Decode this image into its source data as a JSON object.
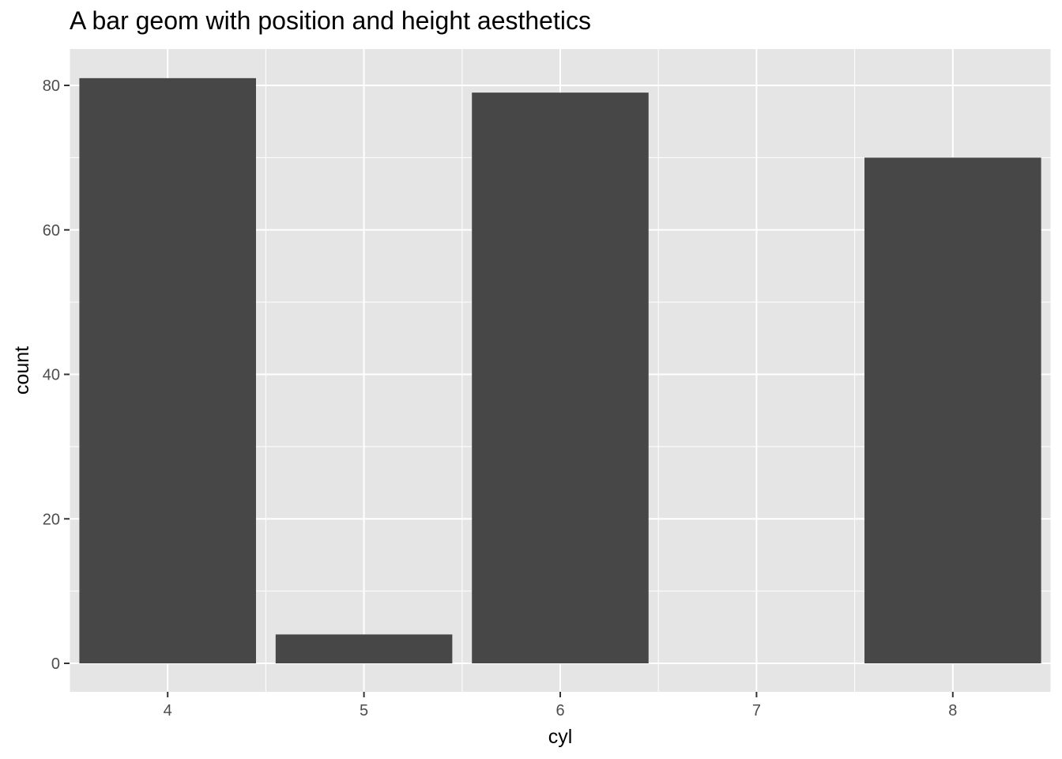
{
  "chart_data": {
    "type": "bar",
    "title": "A bar geom with position and height aesthetics",
    "xlabel": "cyl",
    "ylabel": "count",
    "categories": [
      "4",
      "5",
      "6",
      "7",
      "8"
    ],
    "x": [
      4,
      5,
      6,
      7,
      8
    ],
    "values": [
      81,
      4,
      79,
      0,
      70
    ],
    "xlim": [
      3.5,
      8.5
    ],
    "ylim": [
      0,
      85
    ],
    "xticks": [
      4,
      5,
      6,
      7,
      8
    ],
    "yticks": [
      0,
      20,
      40,
      60,
      80
    ],
    "grid": true,
    "colors": {
      "panel_background": "#e5e5e5",
      "grid": "#ffffff",
      "bar_fill": "#474747",
      "tick_text": "#4d4d4d",
      "title_text": "#000000"
    }
  }
}
